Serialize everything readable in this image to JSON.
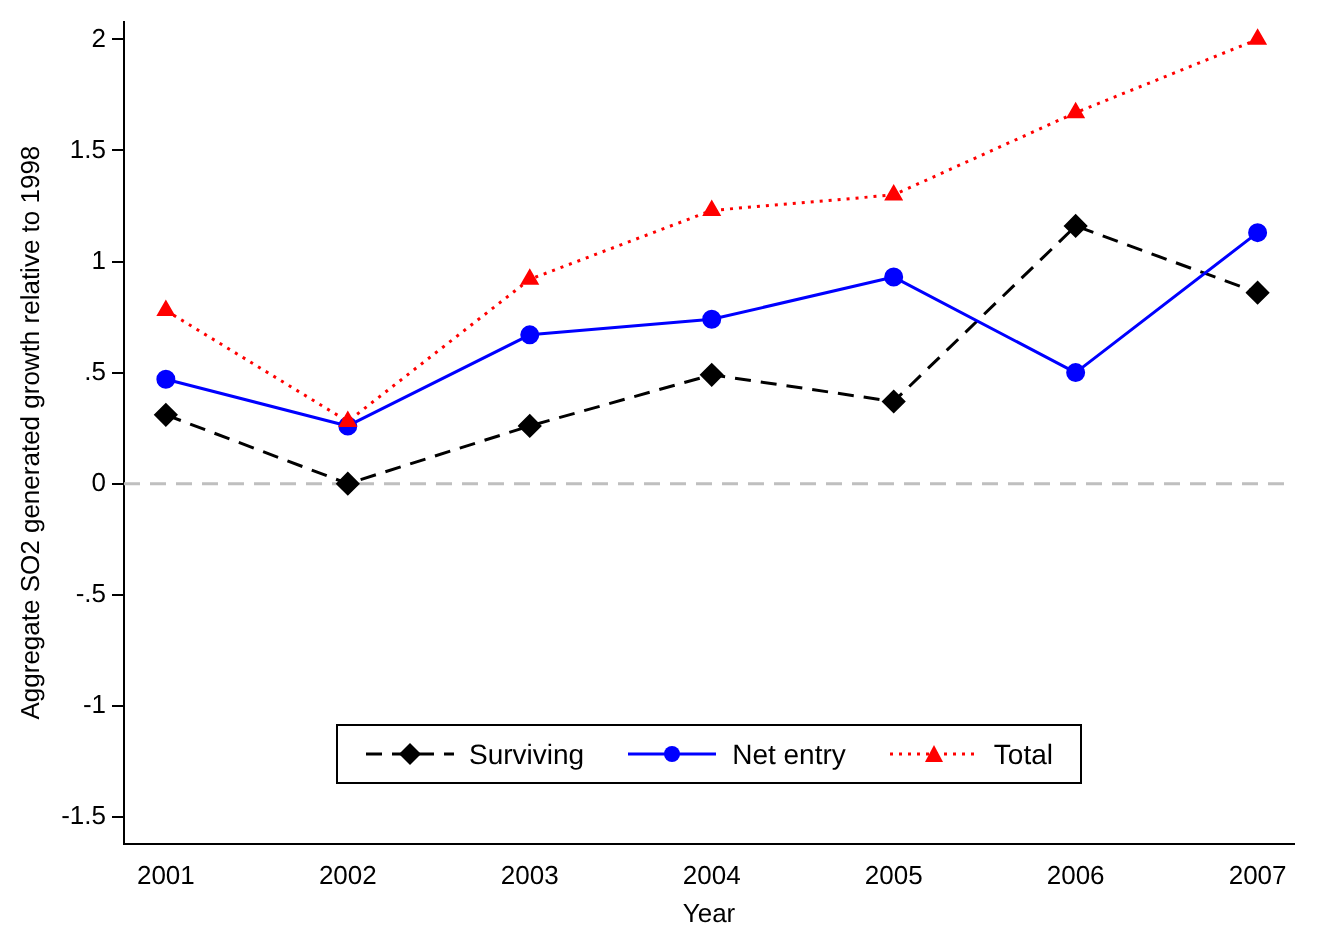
{
  "chart_data": {
    "type": "line",
    "xlabel": "Year",
    "ylabel": "Aggregate SO2 generated growth relative to 1998",
    "x": [
      2001,
      2002,
      2003,
      2004,
      2005,
      2006,
      2007
    ],
    "series": [
      {
        "name": "Surviving",
        "color": "#000000",
        "marker": "diamond",
        "line_style": "dashed",
        "values": [
          0.31,
          0.0,
          0.26,
          0.49,
          0.37,
          1.16,
          0.86
        ]
      },
      {
        "name": "Net entry",
        "color": "#0000ff",
        "marker": "circle",
        "line_style": "solid",
        "values": [
          0.47,
          0.26,
          0.67,
          0.74,
          0.93,
          0.5,
          1.13
        ]
      },
      {
        "name": "Total",
        "color": "#ff0000",
        "marker": "triangle",
        "line_style": "dotted",
        "values": [
          0.78,
          0.28,
          0.92,
          1.23,
          1.3,
          1.67,
          2.0
        ]
      }
    ],
    "xlim": [
      2000.77,
      2007.2
    ],
    "xticks": [
      2001,
      2002,
      2003,
      2004,
      2005,
      2006,
      2007
    ],
    "ylim": [
      -1.62,
      2.08
    ],
    "yticks": [
      {
        "value": -1.5,
        "label": "-1.5"
      },
      {
        "value": -1,
        "label": "-1"
      },
      {
        "value": -0.5,
        "label": "-.5"
      },
      0,
      {
        "value": 0.5,
        "label": ".5"
      },
      1,
      {
        "value": 1.5,
        "label": "1.5"
      },
      2
    ],
    "ref_lines": [
      {
        "axis": "y",
        "value": 0,
        "color": "#bfbfbf",
        "line_style": "dashed"
      }
    ],
    "grid": false,
    "legend": "bottom"
  }
}
